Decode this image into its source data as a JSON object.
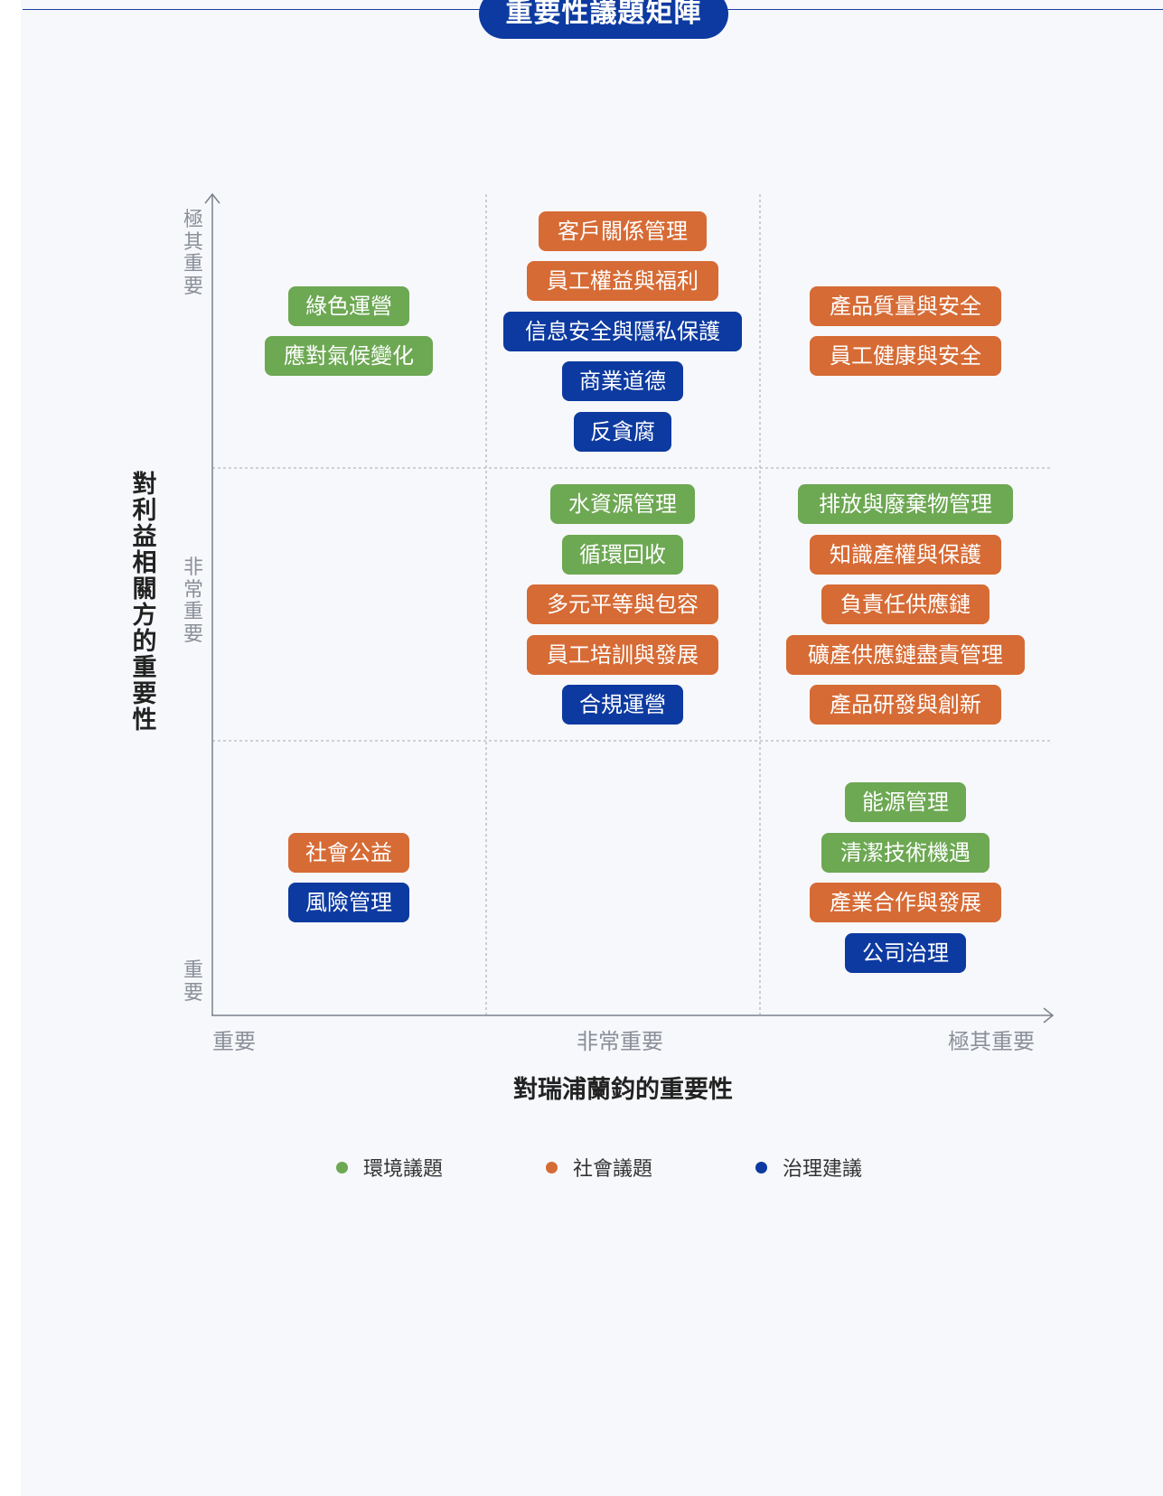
{
  "title": "重要性議題矩陣",
  "y_axis": {
    "label": "對利益相關方的重要性",
    "ticks": [
      "極其重要",
      "非常重要",
      "重要"
    ]
  },
  "x_axis": {
    "label": "對瑞浦蘭鈞的重要性",
    "ticks": [
      "重要",
      "非常重要",
      "極其重要"
    ]
  },
  "legend": [
    {
      "key": "env",
      "label": "環境議題",
      "color": "#6da853"
    },
    {
      "key": "soc",
      "label": "社會議題",
      "color": "#d66b35"
    },
    {
      "key": "gov",
      "label": "治理建議",
      "color": "#0d3aa0"
    }
  ],
  "chart_data": {
    "type": "table",
    "title": "重要性議題矩陣",
    "xlabel": "對瑞浦蘭鈞的重要性",
    "ylabel": "對利益相關方的重要性",
    "x_levels": [
      "重要",
      "非常重要",
      "極其重要"
    ],
    "y_levels": [
      "極其重要",
      "非常重要",
      "重要"
    ],
    "cells": [
      {
        "x": "重要",
        "y": "極其重要",
        "issues": [
          {
            "label": "綠色運營",
            "category": "env"
          },
          {
            "label": "應對氣候變化",
            "category": "env"
          }
        ]
      },
      {
        "x": "非常重要",
        "y": "極其重要",
        "issues": [
          {
            "label": "客戶關係管理",
            "category": "soc"
          },
          {
            "label": "員工權益與福利",
            "category": "soc"
          },
          {
            "label": "信息安全與隱私保護",
            "category": "gov"
          },
          {
            "label": "商業道德",
            "category": "gov"
          },
          {
            "label": "反貪腐",
            "category": "gov"
          }
        ]
      },
      {
        "x": "極其重要",
        "y": "極其重要",
        "issues": [
          {
            "label": "產品質量與安全",
            "category": "soc"
          },
          {
            "label": "員工健康與安全",
            "category": "soc"
          }
        ]
      },
      {
        "x": "重要",
        "y": "非常重要",
        "issues": []
      },
      {
        "x": "非常重要",
        "y": "非常重要",
        "issues": [
          {
            "label": "水資源管理",
            "category": "env"
          },
          {
            "label": "循環回收",
            "category": "env"
          },
          {
            "label": "多元平等與包容",
            "category": "soc"
          },
          {
            "label": "員工培訓與發展",
            "category": "soc"
          },
          {
            "label": "合規運營",
            "category": "gov"
          }
        ]
      },
      {
        "x": "極其重要",
        "y": "非常重要",
        "issues": [
          {
            "label": "排放與廢棄物管理",
            "category": "env"
          },
          {
            "label": "知識產權與保護",
            "category": "soc"
          },
          {
            "label": "負責任供應鏈",
            "category": "soc"
          },
          {
            "label": "礦產供應鏈盡責管理",
            "category": "soc"
          },
          {
            "label": "產品研發與創新",
            "category": "soc"
          }
        ]
      },
      {
        "x": "重要",
        "y": "重要",
        "issues": [
          {
            "label": "社會公益",
            "category": "soc"
          },
          {
            "label": "風險管理",
            "category": "gov"
          }
        ]
      },
      {
        "x": "非常重要",
        "y": "重要",
        "issues": []
      },
      {
        "x": "極其重要",
        "y": "重要",
        "issues": [
          {
            "label": "能源管理",
            "category": "env"
          },
          {
            "label": "清潔技術機遇",
            "category": "env"
          },
          {
            "label": "產業合作與發展",
            "category": "soc"
          },
          {
            "label": "公司治理",
            "category": "gov"
          }
        ]
      }
    ]
  }
}
